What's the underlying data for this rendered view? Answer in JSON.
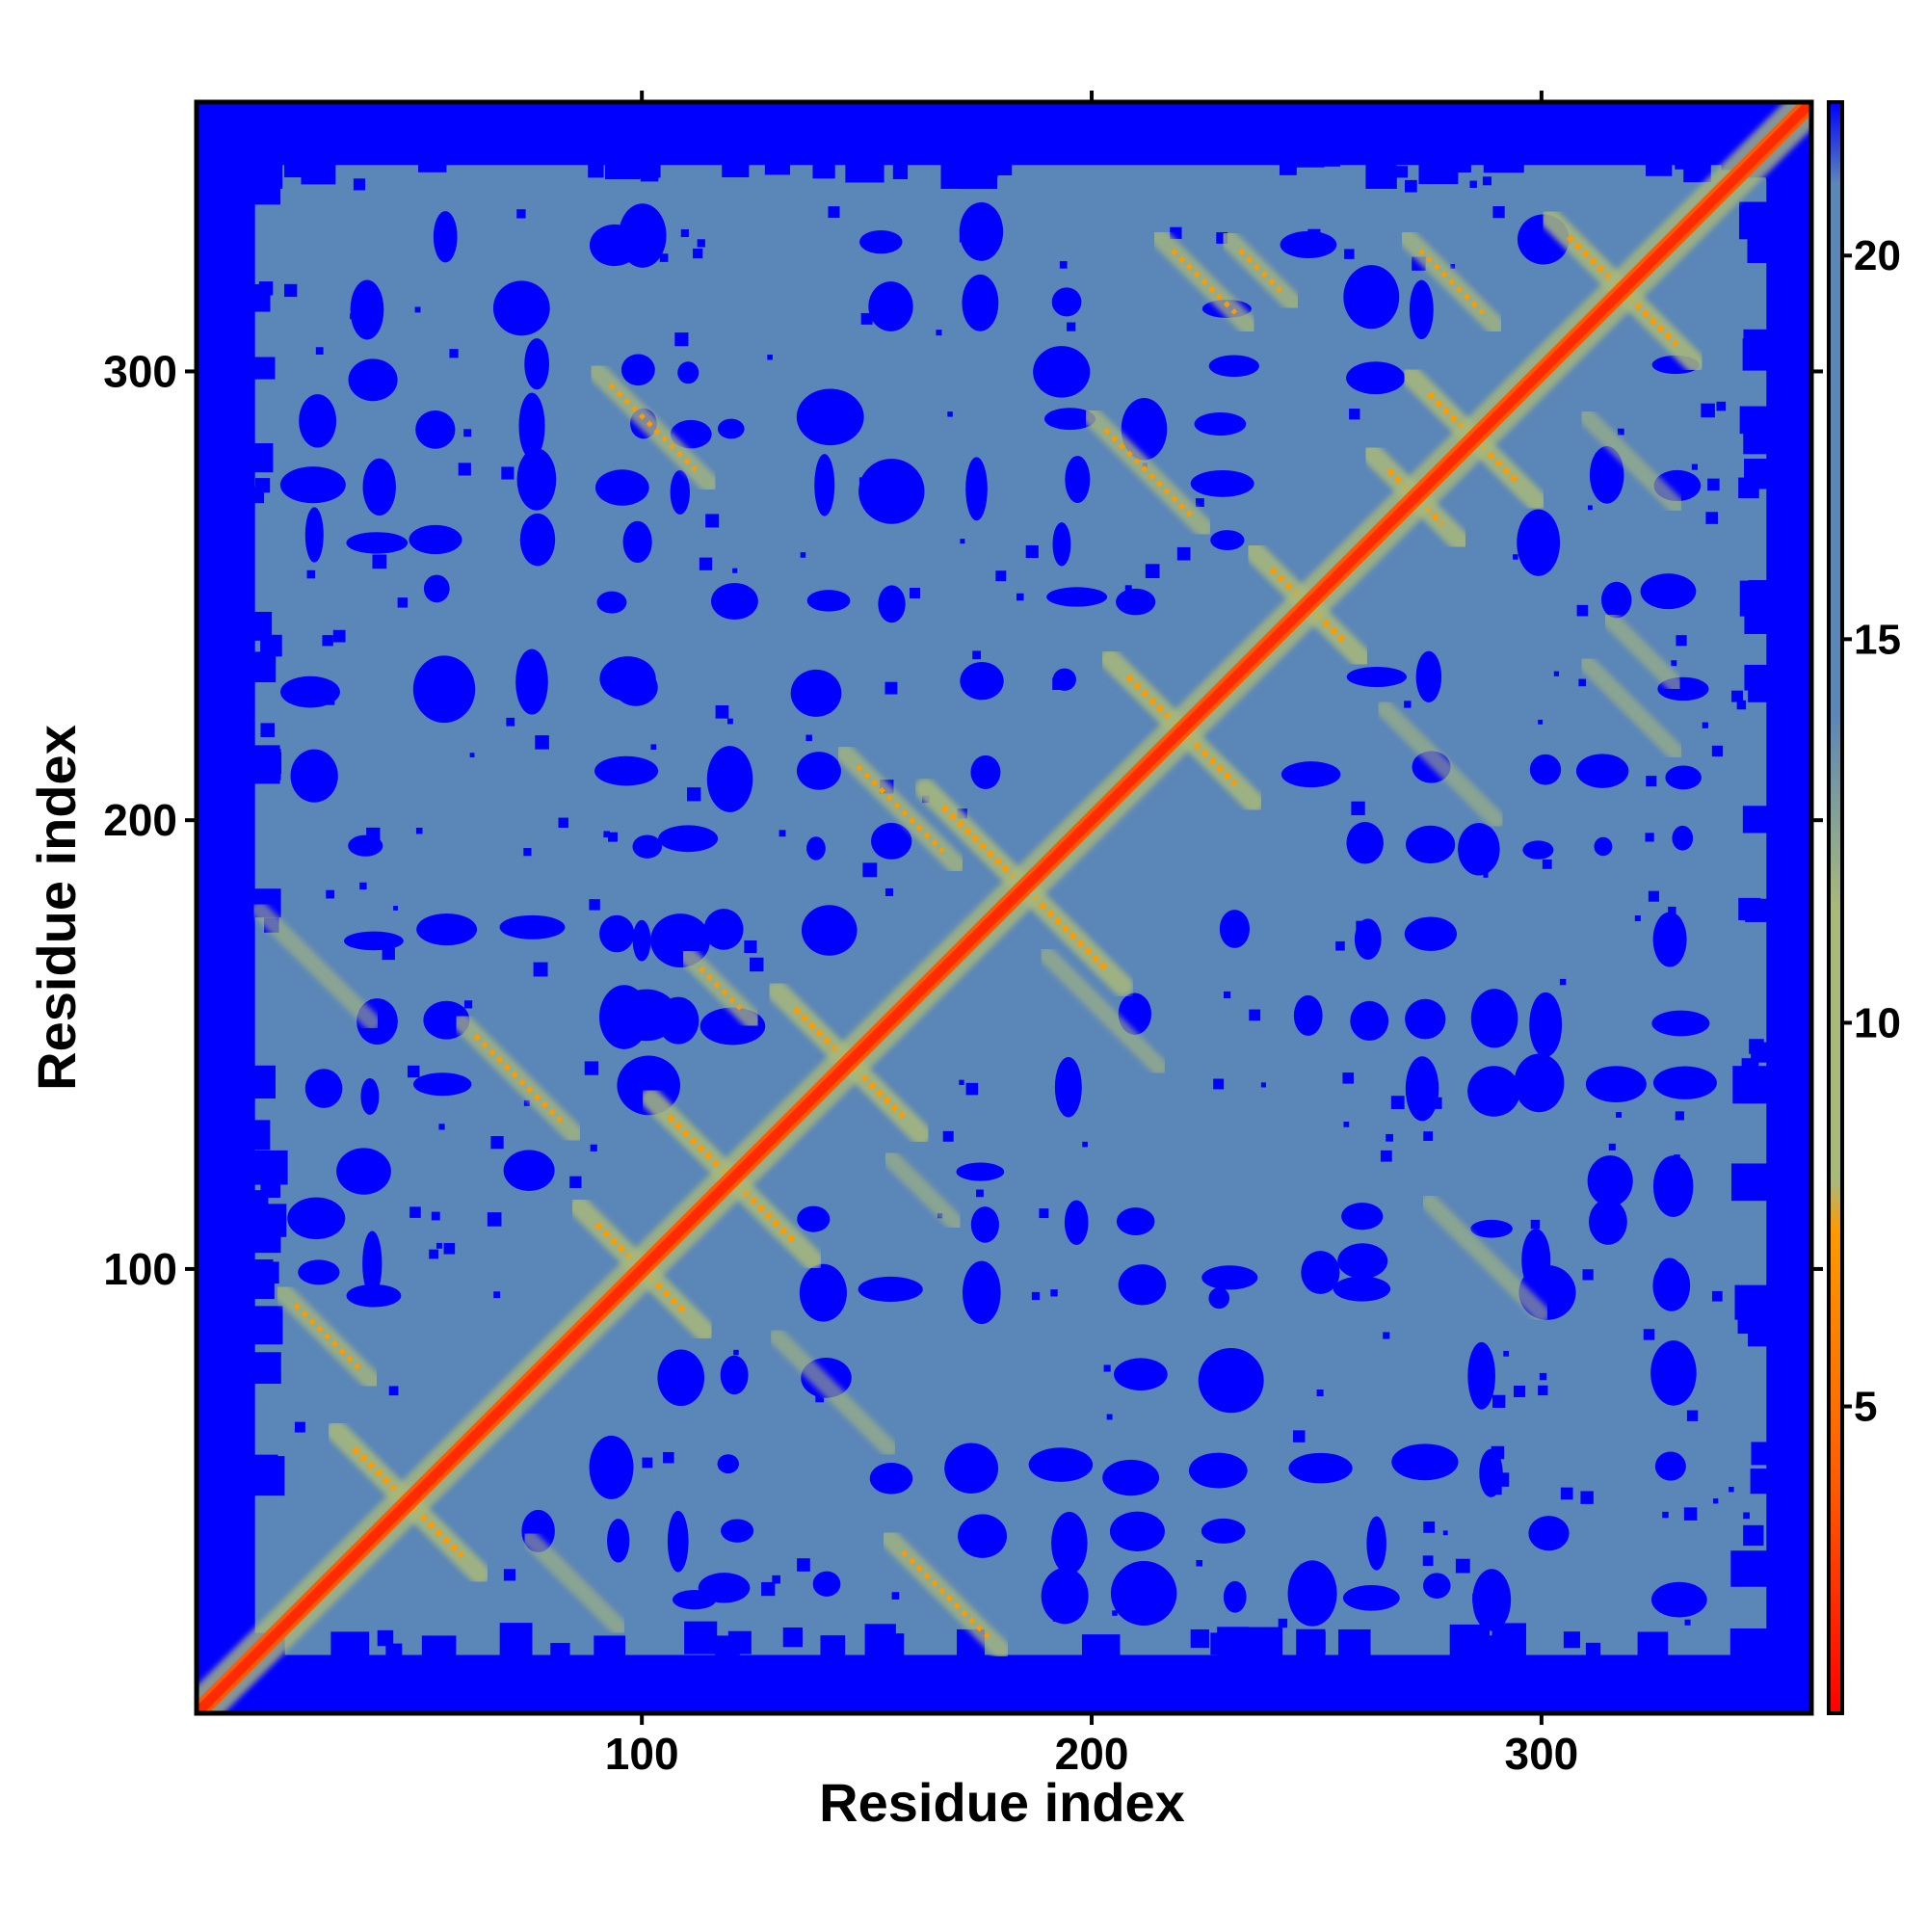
{
  "chart_data": {
    "type": "heatmap",
    "title": "",
    "xlabel": "Residue index",
    "ylabel": "Residue index",
    "n_residues": 360,
    "xlim": [
      1,
      360
    ],
    "ylim": [
      1,
      360
    ],
    "x_ticks": [
      "100",
      "200",
      "300"
    ],
    "x_tick_values": [
      100,
      200,
      300
    ],
    "y_ticks": [
      "100",
      "200",
      "300"
    ],
    "y_tick_values": [
      100,
      200,
      300
    ],
    "colorbar": {
      "ticks": [
        "5",
        "10",
        "15",
        "20"
      ],
      "tick_values": [
        5,
        10,
        15,
        20
      ],
      "range": [
        1,
        22
      ],
      "colors_low_to_high": [
        "#ff0000",
        "#ff5a00",
        "#ff9a00",
        "#a9b97a",
        "#5b86b8",
        "#0000ff"
      ]
    },
    "background_color": "#0000ff",
    "diagonal_color": "#ff2a00",
    "description_of_structure": "Symmetric residue-residue distance map; red diagonal, orange/yellow near-contacts forming X-shaped crossings around residues 45, 100, 120, 145, 185, 220, 280, 315; grey-blue mid-range distances; blue far-distance blobs"
  }
}
